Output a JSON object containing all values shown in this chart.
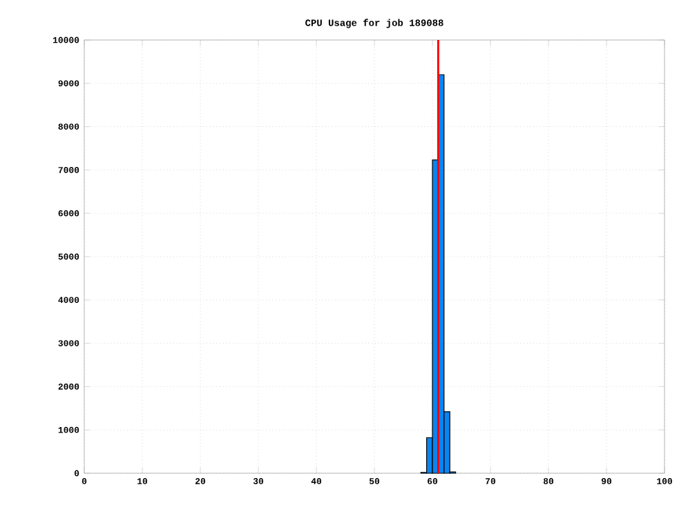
{
  "chart_data": {
    "type": "histogram",
    "title": "CPU Usage for job 189088",
    "bins": [
      58,
      59,
      60,
      61,
      62,
      63,
      64
    ],
    "values": [
      20,
      820,
      7230,
      9200,
      1420,
      30
    ],
    "color": "#0a84f0",
    "xlim": [
      0,
      100
    ],
    "xticks": [
      0,
      10,
      20,
      30,
      40,
      50,
      60,
      70,
      80,
      90,
      100
    ],
    "ylim": [
      0,
      10000
    ],
    "yticks": [
      0,
      1000,
      2000,
      3000,
      4000,
      5000,
      6000,
      7000,
      8000,
      9000,
      10000
    ],
    "grid": true,
    "ref_lines": [
      {
        "axis": "x",
        "value": 61,
        "color": "#ff0000"
      }
    ]
  }
}
